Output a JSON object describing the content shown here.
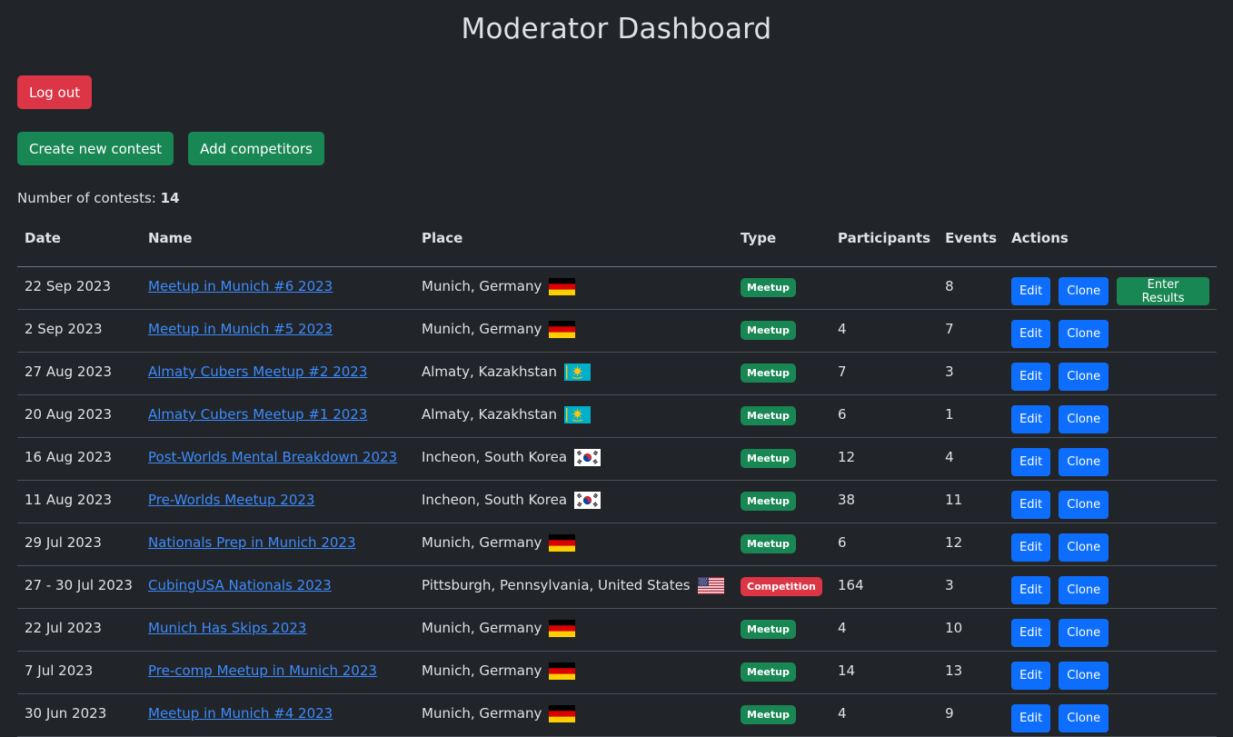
{
  "title": "Moderator Dashboard",
  "buttons": {
    "logout": "Log out",
    "create": "Create new contest",
    "add_competitors": "Add competitors"
  },
  "count_label": "Number of contests:",
  "count_value": "14",
  "columns": [
    "Date",
    "Name",
    "Place",
    "Type",
    "Participants",
    "Events",
    "Actions"
  ],
  "action_labels": {
    "edit": "Edit",
    "clone": "Clone",
    "enter_results": "Enter Results"
  },
  "colors": {
    "background": "#212529",
    "danger": "#dc3545",
    "success": "#198754",
    "primary": "#0d6efd",
    "link": "#3d8bfd"
  },
  "rows": [
    {
      "date": "22 Sep 2023",
      "name": "Meetup in Munich #6 2023",
      "place": "Munich, Germany",
      "flag": "germany-flag",
      "type": "Meetup",
      "participants": "",
      "events": "8",
      "enter_results": true
    },
    {
      "date": "2 Sep 2023",
      "name": "Meetup in Munich #5 2023",
      "place": "Munich, Germany",
      "flag": "germany-flag",
      "type": "Meetup",
      "participants": "4",
      "events": "7",
      "enter_results": false
    },
    {
      "date": "27 Aug 2023",
      "name": "Almaty Cubers Meetup #2 2023",
      "place": "Almaty, Kazakhstan",
      "flag": "kazakhstan-flag",
      "type": "Meetup",
      "participants": "7",
      "events": "3",
      "enter_results": false
    },
    {
      "date": "20 Aug 2023",
      "name": "Almaty Cubers Meetup #1 2023",
      "place": "Almaty, Kazakhstan",
      "flag": "kazakhstan-flag",
      "type": "Meetup",
      "participants": "6",
      "events": "1",
      "enter_results": false
    },
    {
      "date": "16 Aug 2023",
      "name": "Post-Worlds Mental Breakdown 2023",
      "place": "Incheon, South Korea",
      "flag": "south-korea-flag",
      "type": "Meetup",
      "participants": "12",
      "events": "4",
      "enter_results": false
    },
    {
      "date": "11 Aug 2023",
      "name": "Pre-Worlds Meetup 2023",
      "place": "Incheon, South Korea",
      "flag": "south-korea-flag",
      "type": "Meetup",
      "participants": "38",
      "events": "11",
      "enter_results": false
    },
    {
      "date": "29 Jul 2023",
      "name": "Nationals Prep in Munich 2023",
      "place": "Munich, Germany",
      "flag": "germany-flag",
      "type": "Meetup",
      "participants": "6",
      "events": "12",
      "enter_results": false
    },
    {
      "date": "27 - 30 Jul 2023",
      "name": "CubingUSA Nationals 2023",
      "place": "Pittsburgh, Pennsylvania, United States",
      "flag": "usa-flag",
      "type": "Competition",
      "participants": "164",
      "events": "3",
      "enter_results": false
    },
    {
      "date": "22 Jul 2023",
      "name": "Munich Has Skips 2023",
      "place": "Munich, Germany",
      "flag": "germany-flag",
      "type": "Meetup",
      "participants": "4",
      "events": "10",
      "enter_results": false
    },
    {
      "date": "7 Jul 2023",
      "name": "Pre-comp Meetup in Munich 2023",
      "place": "Munich, Germany",
      "flag": "germany-flag",
      "type": "Meetup",
      "participants": "14",
      "events": "13",
      "enter_results": false
    },
    {
      "date": "30 Jun 2023",
      "name": "Meetup in Munich #4 2023",
      "place": "Munich, Germany",
      "flag": "germany-flag",
      "type": "Meetup",
      "participants": "4",
      "events": "9",
      "enter_results": false
    }
  ]
}
